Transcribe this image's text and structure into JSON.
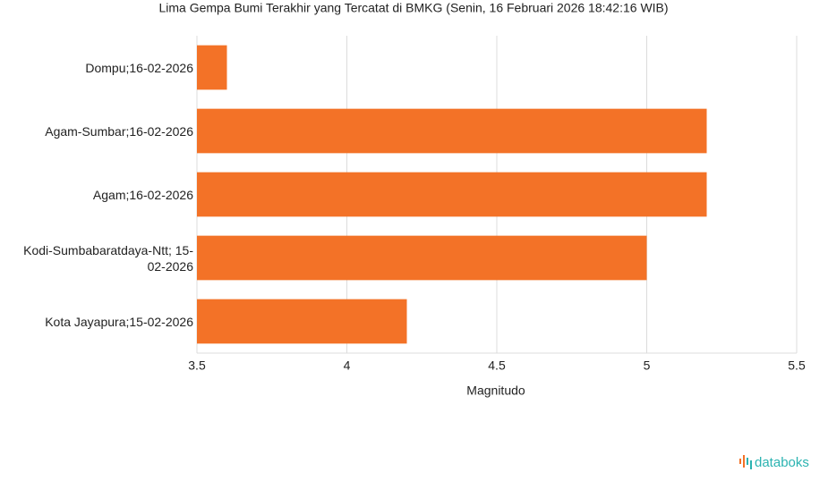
{
  "chart_data": {
    "type": "barh",
    "title": "Lima Gempa Bumi Terakhir yang Tercatat di BMKG (Senin, 16 Februari 2026 18:42:16 WIB)",
    "categories": [
      "Dompu;16-02-2026",
      "Agam-Sumbar;16-02-2026",
      "Agam;16-02-2026",
      "Kodi-Sumbabaratdaya-Ntt; 15-02-2026",
      "Kota Jayapura;15-02-2026"
    ],
    "values": [
      3.6,
      5.2,
      5.2,
      5.0,
      4.2
    ],
    "color": "#f37227",
    "xlabel": "Magnitudo",
    "xlim": [
      3.5,
      5.5
    ],
    "xticks": [
      3.5,
      4,
      4.5,
      5,
      5.5
    ],
    "grid": true
  },
  "brand": "databoks"
}
